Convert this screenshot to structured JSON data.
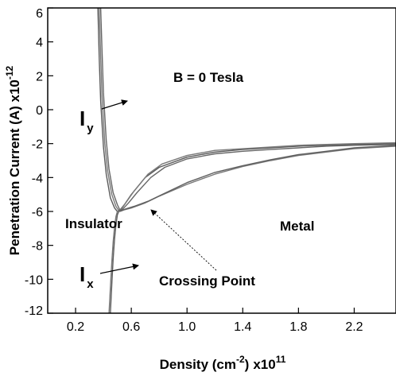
{
  "chart_data": {
    "type": "line",
    "title": "",
    "xlabel": {
      "main": "Density (cm",
      "sup": "-2",
      "close": ")",
      "multiplier": "x10",
      "multiplier_exp": "11"
    },
    "ylabel": {
      "main": "Penetration Current (A) x10",
      "exp": "-12"
    },
    "xlim": [
      0.0,
      2.5
    ],
    "ylim": [
      -12,
      6
    ],
    "x_ticks": [
      {
        "value": 0.2,
        "label": "0.2"
      },
      {
        "value": 0.6,
        "label": "0.6"
      },
      {
        "value": 1.0,
        "label": "1.0"
      },
      {
        "value": 1.4,
        "label": "1.4"
      },
      {
        "value": 1.8,
        "label": "1.8"
      },
      {
        "value": 2.2,
        "label": "2.2"
      }
    ],
    "y_ticks": [
      {
        "value": 6,
        "label": "6"
      },
      {
        "value": 4,
        "label": "4"
      },
      {
        "value": 2,
        "label": "2"
      },
      {
        "value": 0,
        "label": "0"
      },
      {
        "value": -2,
        "label": "-2"
      },
      {
        "value": -4,
        "label": "-4"
      },
      {
        "value": -6,
        "label": "-6"
      },
      {
        "value": -8,
        "label": "-8"
      },
      {
        "value": -10,
        "label": "-10"
      },
      {
        "value": -12,
        "label": "-12"
      }
    ],
    "grid": false,
    "series": [
      {
        "color": "#5a5a5a",
        "x": [
          0.36,
          0.37,
          0.38,
          0.4,
          0.42,
          0.45,
          0.48,
          0.5,
          0.52,
          0.55,
          0.6,
          0.7,
          0.8,
          1.0,
          1.2,
          1.4,
          1.6,
          1.8,
          2.0,
          2.2,
          2.5
        ],
        "y": [
          6.0,
          3.0,
          0.5,
          -2.2,
          -3.8,
          -5.2,
          -5.8,
          -6.0,
          -5.9,
          -5.6,
          -5.0,
          -4.0,
          -3.4,
          -2.8,
          -2.5,
          -2.35,
          -2.25,
          -2.15,
          -2.1,
          -2.05,
          -2.0
        ]
      },
      {
        "color": "#7a7a7a",
        "x": [
          0.37,
          0.38,
          0.39,
          0.41,
          0.43,
          0.46,
          0.49,
          0.51,
          0.53,
          0.56,
          0.62,
          0.72,
          0.82,
          1.0,
          1.2,
          1.4,
          1.6,
          1.8,
          2.0,
          2.2,
          2.5
        ],
        "y": [
          6.0,
          3.2,
          0.8,
          -2.0,
          -3.6,
          -5.0,
          -5.7,
          -5.95,
          -5.85,
          -5.5,
          -4.8,
          -3.8,
          -3.2,
          -2.7,
          -2.4,
          -2.3,
          -2.2,
          -2.1,
          -2.05,
          -2.0,
          -1.95
        ]
      },
      {
        "color": "#666666",
        "x": [
          0.38,
          0.39,
          0.4,
          0.42,
          0.44,
          0.47,
          0.5,
          0.52,
          0.54,
          0.58,
          0.64,
          0.74,
          0.84,
          1.0,
          1.2,
          1.4,
          1.6,
          1.8,
          2.0,
          2.2,
          2.5
        ],
        "y": [
          6.0,
          3.5,
          1.0,
          -1.8,
          -3.5,
          -4.9,
          -5.6,
          -5.95,
          -5.85,
          -5.5,
          -4.9,
          -4.0,
          -3.4,
          -2.9,
          -2.6,
          -2.45,
          -2.35,
          -2.25,
          -2.15,
          -2.1,
          -2.05
        ]
      },
      {
        "color": "#777777",
        "x": [
          0.44,
          0.45,
          0.46,
          0.47,
          0.48,
          0.49,
          0.5,
          0.51,
          0.52,
          0.55,
          0.6,
          0.7,
          0.8,
          1.0,
          1.2,
          1.4,
          1.6,
          1.8,
          2.0,
          2.2,
          2.5
        ],
        "y": [
          -12.0,
          -10.5,
          -9.0,
          -7.8,
          -6.9,
          -6.3,
          -6.0,
          -5.95,
          -6.0,
          -5.9,
          -5.8,
          -5.5,
          -5.1,
          -4.4,
          -3.8,
          -3.35,
          -3.0,
          -2.7,
          -2.5,
          -2.3,
          -2.15
        ]
      },
      {
        "color": "#5f5f5f",
        "x": [
          0.45,
          0.46,
          0.47,
          0.48,
          0.49,
          0.5,
          0.51,
          0.52,
          0.53,
          0.56,
          0.62,
          0.72,
          0.82,
          1.0,
          1.2,
          1.4,
          1.6,
          1.8,
          2.0,
          2.2,
          2.5
        ],
        "y": [
          -12.0,
          -10.3,
          -8.8,
          -7.6,
          -6.8,
          -6.2,
          -6.0,
          -5.95,
          -5.95,
          -5.85,
          -5.7,
          -5.4,
          -5.0,
          -4.3,
          -3.7,
          -3.3,
          -2.95,
          -2.65,
          -2.45,
          -2.25,
          -2.1
        ]
      }
    ],
    "annotations": {
      "field": "B = 0 Tesla",
      "iy_main": "I",
      "iy_sub": "y",
      "ix_main": "I",
      "ix_sub": "x",
      "insulator": "Insulator",
      "metal": "Metal",
      "crossing": "Crossing Point"
    }
  }
}
